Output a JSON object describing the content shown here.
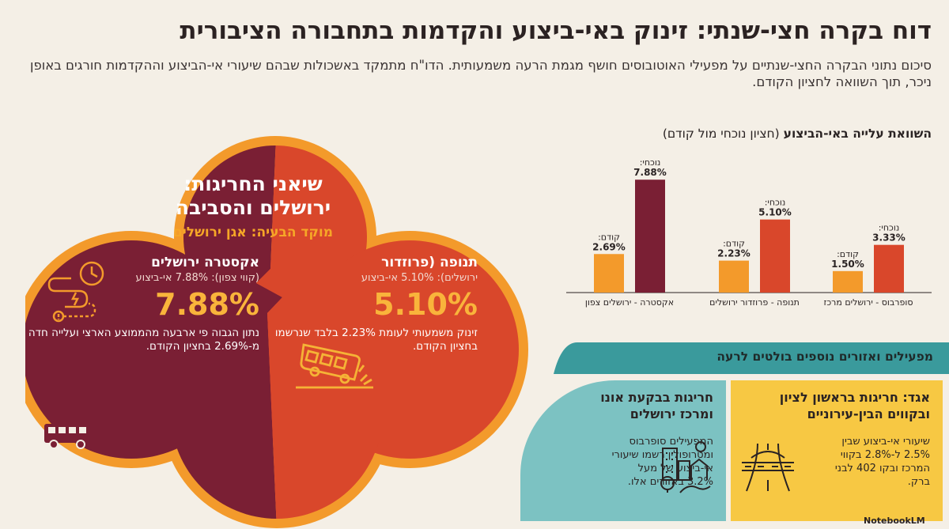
{
  "header": {
    "title": "דוח בקרה חצי-שנתי: זינוק באי-ביצוע והקדמות בתחבורה הציבורית",
    "subtitle": "סיכום נתוני הבקרה החצי-שנתיים על מפעילי האוטובוסים חושף מגמת הרעה משמעותית. הדו\"ח מתמקד באשכולות שבהם שיעורי אי-הביצוע וההקדמות חורגים באופן ניכר, תוך השוואה לחציון הקודם."
  },
  "cloud": {
    "title_line1": "שיאני החריגות:",
    "title_line2": "ירושלים והסביבה",
    "focus": "מוקד הבעיה: אגן ירושלים",
    "left": {
      "title": "אקסטרה ירושלים",
      "sub": "(קווי צפון): 7.88% אי-ביצוע",
      "big": "7.88%",
      "desc": "נתון הגבוה פי ארבעה מהממוצע הארצי ועלייה חדה מ-2.69% בחציון הקודם."
    },
    "right": {
      "title": "תנופה (פרוזדור",
      "sub": "ירושלים): 5.10% אי-ביצוע",
      "big": "5.10%",
      "desc": "זינוק משמעותי לעומת 2.23% בלבד שנרשמו בחציון הקודם."
    },
    "colors": {
      "left": "#7a1f34",
      "right": "#d9472b",
      "border": "#f39a2b"
    }
  },
  "chart": {
    "title_bold": "השוואת עלייה באי-הביצוע",
    "title_normal": "(חציון נוכחי מול קודם)"
  },
  "chart_data": {
    "type": "bar",
    "categories": [
      "אקסטרה - ירושלים צפון",
      "תנופה - פרוזדור ירושלים",
      "סופרבוס - ירושלים מרכז"
    ],
    "series": [
      {
        "name": "נוכחי",
        "values": [
          7.88,
          5.1,
          3.33
        ],
        "labels": [
          "7.88%",
          "5.10%",
          "3.33%"
        ]
      },
      {
        "name": "קודם",
        "values": [
          2.69,
          2.23,
          1.5
        ],
        "labels": [
          "2.69%",
          "2.23%",
          "1.50%"
        ]
      }
    ],
    "series_labels": [
      "נוכחי:",
      "קודם:"
    ],
    "colors": {
      "current_first": "#7a1f34",
      "current_other": "#d9472b",
      "previous": "#f39a2b"
    },
    "ylim": [
      0,
      8.5
    ],
    "grid": false
  },
  "bottom": {
    "banner": "מפעילים ואזורים נוספים בולטים לרעה",
    "teal": {
      "title_line1": "חריגות בבקעת אונו",
      "title_line2": "ומרכז ירושלים",
      "text": "המפעילים סופרבוס ומטרופולין רשמו שיעורי אי-ביצוע של מעל 3.2% באזורים אלו."
    },
    "yellow": {
      "title_line1": "אגד: חריגות בראשון לציון",
      "title_line2": "ובקווים הבין-עירוניים",
      "text": "שיעורי אי-ביצוע שבין 2.5% ל-2.8% בקווי המרכז ובקו 402 לבני ברק."
    }
  },
  "watermark": "NotebookLM"
}
